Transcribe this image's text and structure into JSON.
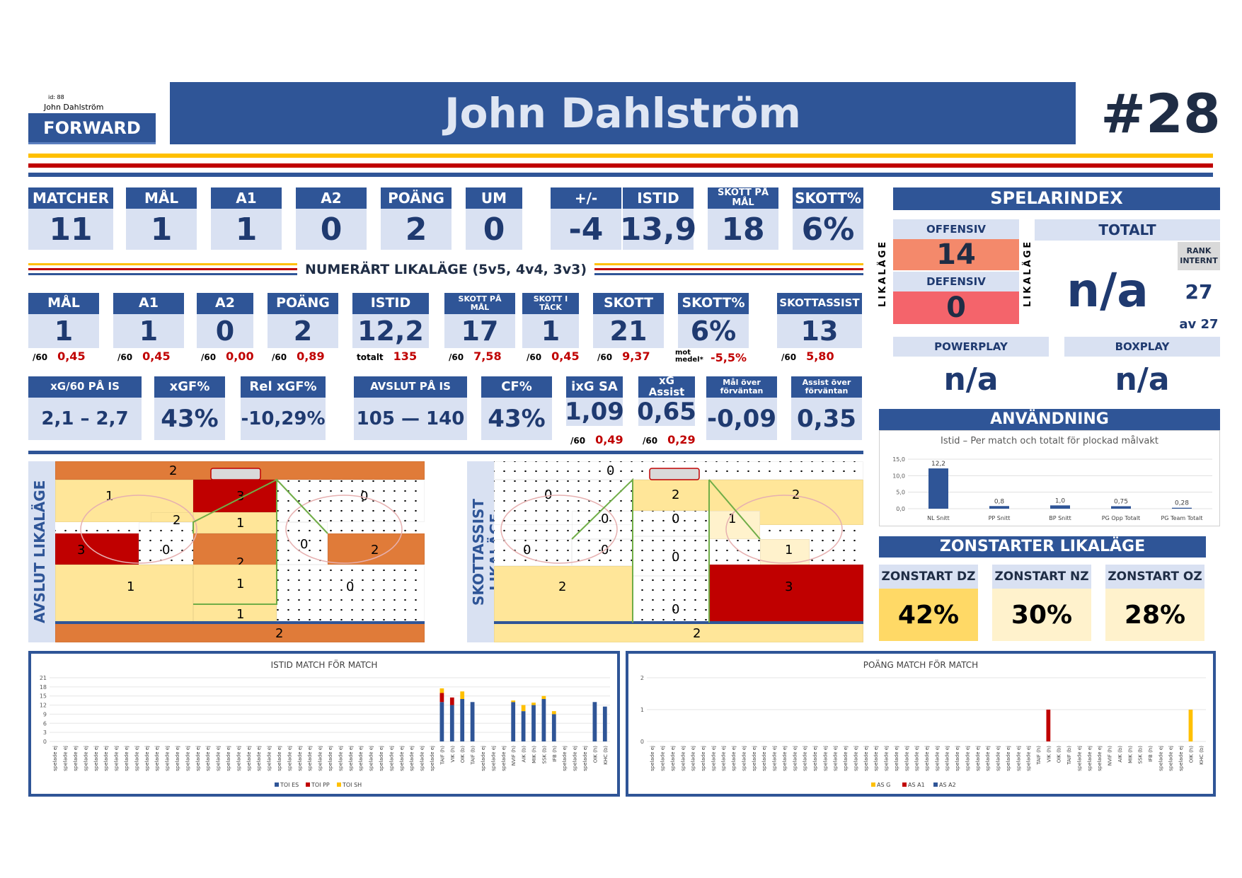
{
  "header": {
    "id_text": "id: 88",
    "player_small": "John Dahlström",
    "position": "FORWARD",
    "player_name": "John Dahlström",
    "number": "#28"
  },
  "stats_top": [
    {
      "label": "MATCHER",
      "value": "11"
    },
    {
      "label": "MÅL",
      "value": "1"
    },
    {
      "label": "A1",
      "value": "1"
    },
    {
      "label": "A2",
      "value": "0"
    },
    {
      "label": "POÄNG",
      "value": "2"
    },
    {
      "label": "UM",
      "value": "0"
    },
    {
      "label": "+/-",
      "value": "-4"
    },
    {
      "label": "ISTID",
      "value": "13,9"
    },
    {
      "label": "SKOTT PÅ MÅL",
      "value": "18"
    },
    {
      "label": "SKOTT%",
      "value": "6%"
    }
  ],
  "likalage": {
    "title": "NUMERÄRT LIKALÄGE (5v5, 4v4, 3v3)",
    "stats": [
      {
        "label": "MÅL",
        "value": "1",
        "sub_prefix": "/60",
        "sub_value": "0,45"
      },
      {
        "label": "A1",
        "value": "1",
        "sub_prefix": "/60",
        "sub_value": "0,45"
      },
      {
        "label": "A2",
        "value": "0",
        "sub_prefix": "/60",
        "sub_value": "0,00"
      },
      {
        "label": "POÄNG",
        "value": "2",
        "sub_prefix": "/60",
        "sub_value": "0,89"
      },
      {
        "label": "ISTID",
        "value": "12,2",
        "sub_prefix": "totalt",
        "sub_value": "135"
      },
      {
        "label": "SKOTT PÅ MÅL",
        "value": "17",
        "sub_prefix": "/60",
        "sub_value": "7,58"
      },
      {
        "label": "SKOTT I TÄCK",
        "value": "1",
        "sub_prefix": "/60",
        "sub_value": "0,45"
      },
      {
        "label": "SKOTT",
        "value": "21",
        "sub_prefix": "/60",
        "sub_value": "9,37"
      },
      {
        "label": "SKOTT%",
        "value": "6%",
        "sub_prefix": "mot medel*",
        "sub_value": "-5,5%"
      },
      {
        "label": "SKOTTASSIST",
        "value": "13",
        "sub_prefix": "/60",
        "sub_value": "5,80"
      }
    ],
    "xg": [
      {
        "label": "xG/60 PÅ IS",
        "value": "2,1 – 2,7"
      },
      {
        "label": "xGF%",
        "value": "43%"
      },
      {
        "label": "Rel xGF%",
        "value": "-10,29%"
      },
      {
        "label": "AVSLUT PÅ IS",
        "value": "105 — 140"
      },
      {
        "label": "CF%",
        "value": "43%"
      },
      {
        "label": "ixG SA",
        "value": "1,09",
        "sub_prefix": "/60",
        "sub_value": "0,49"
      },
      {
        "label": "xG Assist",
        "value": "0,65",
        "sub_prefix": "/60",
        "sub_value": "0,29"
      },
      {
        "label": "Mål över förväntan",
        "value": "-0,09"
      },
      {
        "label": "Assist över förväntan",
        "value": "0,35"
      }
    ]
  },
  "spelarindex": {
    "title": "SPELARINDEX",
    "offensiv_label": "OFFENSIV",
    "offensiv_value": "14",
    "defensiv_label": "DEFENSIV",
    "defensiv_value": "0",
    "side_label": "LIKALÄGE",
    "totalt_label": "TOTALT",
    "totalt_value": "n/a",
    "rank_label": "RANK INTERNT",
    "rank_value": "27",
    "rank_of": "av 27",
    "powerplay_label": "POWERPLAY",
    "powerplay_value": "n/a",
    "boxplay_label": "BOXPLAY",
    "boxplay_value": "n/a"
  },
  "anvandning": {
    "title": "ANVÄNDNING",
    "chart_data": {
      "type": "bar",
      "title": "Istid – Per match och totalt för plockad målvakt",
      "categories": [
        "NL Snitt",
        "PP Snitt",
        "BP Snitt",
        "PG Opp Totalt",
        "PG Team Totalt"
      ],
      "values": [
        12.2,
        0.8,
        1.0,
        0.75,
        0.28
      ],
      "value_labels": [
        "12,2",
        "0,8",
        "1,0",
        "0,75",
        "0,28"
      ],
      "y_ticks": [
        "15,0",
        "10,0",
        "5,0",
        "0,0"
      ],
      "ylim": [
        0,
        15
      ],
      "color": "#2f5597"
    }
  },
  "zonstarter": {
    "title": "ZONSTARTER LIKALÄGE",
    "items": [
      {
        "label": "ZONSTART DZ",
        "value": "42%",
        "color": "#ffd966"
      },
      {
        "label": "ZONSTART NZ",
        "value": "30%",
        "color": "#fff2cc"
      },
      {
        "label": "ZONSTART OZ",
        "value": "28%",
        "color": "#fff2cc"
      }
    ]
  },
  "avslut": {
    "title": "AVSLUT LIKALÄGE",
    "zones": [
      {
        "v": "2",
        "c": "#e07b39"
      },
      {
        "v": "1",
        "c": "#ffe699"
      },
      {
        "v": "3",
        "c": "#c00000"
      },
      {
        "v": "0",
        "c": "#ffffff"
      },
      {
        "v": "2",
        "c": "#ffe699"
      },
      {
        "v": "1",
        "c": "#ffe699"
      },
      {
        "v": "0",
        "c": "#ffffff"
      },
      {
        "v": "3",
        "c": "#c00000"
      },
      {
        "v": "0",
        "c": "#ffffff"
      },
      {
        "v": "2",
        "c": "#e07b39"
      },
      {
        "v": "2",
        "c": "#e07b39"
      },
      {
        "v": "1",
        "c": "#ffe699"
      },
      {
        "v": "1",
        "c": "#ffe699"
      },
      {
        "v": "1",
        "c": "#ffe699"
      },
      {
        "v": "0",
        "c": "#ffffff"
      },
      {
        "v": "2",
        "c": "#e07b39"
      }
    ]
  },
  "skottassist": {
    "title": "SKOTTASSIST LIKALÄGE",
    "zones": [
      {
        "v": "0",
        "c": "#ffffff"
      },
      {
        "v": "0",
        "c": "#ffffff"
      },
      {
        "v": "2",
        "c": "#ffe699"
      },
      {
        "v": "2",
        "c": "#ffe699"
      },
      {
        "v": "0",
        "c": "#ffffff"
      },
      {
        "v": "0",
        "c": "#ffffff"
      },
      {
        "v": "1",
        "c": "#fff2cc"
      },
      {
        "v": "0",
        "c": "#ffffff"
      },
      {
        "v": "0",
        "c": "#ffffff"
      },
      {
        "v": "0",
        "c": "#ffffff"
      },
      {
        "v": "1",
        "c": "#fff2cc"
      },
      {
        "v": "2",
        "c": "#ffe699"
      },
      {
        "v": "3",
        "c": "#c00000"
      },
      {
        "v": "0",
        "c": "#ffffff"
      },
      {
        "v": "2",
        "c": "#ffe699"
      }
    ]
  },
  "istid_chart": {
    "chart_data": {
      "type": "bar",
      "title": "ISTID MATCH FÖR MATCH",
      "y_ticks": [
        "21",
        "18",
        "15",
        "12",
        "9",
        "6",
        "3",
        "0"
      ],
      "ylim": [
        0,
        21
      ],
      "categories": [
        "spelade ej",
        "spelade ej",
        "spelade ej",
        "spelade ej",
        "spelade ej",
        "spelade ej",
        "spelade ej",
        "spelade ej",
        "spelade ej",
        "spelade ej",
        "spelade ej",
        "spelade ej",
        "spelade ej",
        "spelade ej",
        "spelade ej",
        "spelade ej",
        "spelade ej",
        "spelade ej",
        "spelade ej",
        "spelade ej",
        "spelade ej",
        "spelade ej",
        "spelade ej",
        "spelade ej",
        "spelade ej",
        "spelade ej",
        "spelade ej",
        "spelade ej",
        "spelade ej",
        "spelade ej",
        "spelade ej",
        "spelade ej",
        "spelade ej",
        "spelade ej",
        "spelade ej",
        "spelade ej",
        "spelade ej",
        "spelade ej",
        "TAIF (h)",
        "VIK (h)",
        "OIK (b)",
        "TAIF (b)",
        "spelade ej",
        "spelade ej",
        "spelade ej",
        "NVIF (h)",
        "AIK (b)",
        "MIK (h)",
        "SSK (b)",
        "IFB (h)",
        "spelade ej",
        "spelade ej",
        "spelade ej",
        "OIK (h)",
        "KHC (b)"
      ],
      "series": [
        {
          "name": "TOI ES",
          "color": "#2f5597",
          "values": [
            0,
            0,
            0,
            0,
            0,
            0,
            0,
            0,
            0,
            0,
            0,
            0,
            0,
            0,
            0,
            0,
            0,
            0,
            0,
            0,
            0,
            0,
            0,
            0,
            0,
            0,
            0,
            0,
            0,
            0,
            0,
            0,
            0,
            0,
            0,
            0,
            0,
            0,
            13,
            12,
            14,
            13,
            0,
            0,
            0,
            13,
            10,
            12,
            14,
            9,
            0,
            0,
            0,
            13,
            11.5
          ]
        },
        {
          "name": "TOI PP",
          "color": "#c00000",
          "values": [
            0,
            0,
            0,
            0,
            0,
            0,
            0,
            0,
            0,
            0,
            0,
            0,
            0,
            0,
            0,
            0,
            0,
            0,
            0,
            0,
            0,
            0,
            0,
            0,
            0,
            0,
            0,
            0,
            0,
            0,
            0,
            0,
            0,
            0,
            0,
            0,
            0,
            0,
            3,
            2.5,
            0,
            0,
            0,
            0,
            0,
            0,
            0,
            0,
            0,
            0,
            0,
            0,
            0,
            0,
            0
          ]
        },
        {
          "name": "TOI SH",
          "color": "#ffc000",
          "values": [
            0,
            0,
            0,
            0,
            0,
            0,
            0,
            0,
            0,
            0,
            0,
            0,
            0,
            0,
            0,
            0,
            0,
            0,
            0,
            0,
            0,
            0,
            0,
            0,
            0,
            0,
            0,
            0,
            0,
            0,
            0,
            0,
            0,
            0,
            0,
            0,
            0,
            0,
            1.5,
            0,
            2.5,
            0,
            0,
            0,
            0,
            0.5,
            2,
            0.8,
            1,
            1,
            0,
            0,
            0,
            0,
            0
          ]
        }
      ]
    }
  },
  "poang_chart": {
    "chart_data": {
      "type": "bar",
      "title": "POÄNG MATCH FÖR MATCH",
      "y_ticks": [
        "2",
        "1",
        "0"
      ],
      "ylim": [
        0,
        2
      ],
      "categories": [
        "spelade ej",
        "spelade ej",
        "spelade ej",
        "spelade ej",
        "spelade ej",
        "spelade ej",
        "spelade ej",
        "spelade ej",
        "spelade ej",
        "spelade ej",
        "spelade ej",
        "spelade ej",
        "spelade ej",
        "spelade ej",
        "spelade ej",
        "spelade ej",
        "spelade ej",
        "spelade ej",
        "spelade ej",
        "spelade ej",
        "spelade ej",
        "spelade ej",
        "spelade ej",
        "spelade ej",
        "spelade ej",
        "spelade ej",
        "spelade ej",
        "spelade ej",
        "spelade ej",
        "spelade ej",
        "spelade ej",
        "spelade ej",
        "spelade ej",
        "spelade ej",
        "spelade ej",
        "spelade ej",
        "spelade ej",
        "spelade ej",
        "TAIF (h)",
        "VIK (h)",
        "OIK (b)",
        "TAIF (b)",
        "spelade ej",
        "spelade ej",
        "spelade ej",
        "NVIF (h)",
        "AIK (b)",
        "MIK (h)",
        "SSK (b)",
        "IFB (h)",
        "spelade ej",
        "spelade ej",
        "spelade ej",
        "OIK (h)",
        "KHC (b)"
      ],
      "series": [
        {
          "name": "AS G",
          "color": "#ffc000",
          "values": [
            0,
            0,
            0,
            0,
            0,
            0,
            0,
            0,
            0,
            0,
            0,
            0,
            0,
            0,
            0,
            0,
            0,
            0,
            0,
            0,
            0,
            0,
            0,
            0,
            0,
            0,
            0,
            0,
            0,
            0,
            0,
            0,
            0,
            0,
            0,
            0,
            0,
            0,
            0,
            0,
            0,
            0,
            0,
            0,
            0,
            0,
            0,
            0,
            0,
            0,
            0,
            0,
            0,
            1,
            0
          ]
        },
        {
          "name": "AS A1",
          "color": "#c00000",
          "values": [
            0,
            0,
            0,
            0,
            0,
            0,
            0,
            0,
            0,
            0,
            0,
            0,
            0,
            0,
            0,
            0,
            0,
            0,
            0,
            0,
            0,
            0,
            0,
            0,
            0,
            0,
            0,
            0,
            0,
            0,
            0,
            0,
            0,
            0,
            0,
            0,
            0,
            0,
            0,
            1,
            0,
            0,
            0,
            0,
            0,
            0,
            0,
            0,
            0,
            0,
            0,
            0,
            0,
            0,
            0
          ]
        },
        {
          "name": "AS A2",
          "color": "#2f5597",
          "values": [
            0,
            0,
            0,
            0,
            0,
            0,
            0,
            0,
            0,
            0,
            0,
            0,
            0,
            0,
            0,
            0,
            0,
            0,
            0,
            0,
            0,
            0,
            0,
            0,
            0,
            0,
            0,
            0,
            0,
            0,
            0,
            0,
            0,
            0,
            0,
            0,
            0,
            0,
            0,
            0,
            0,
            0,
            0,
            0,
            0,
            0,
            0,
            0,
            0,
            0,
            0,
            0,
            0,
            0,
            0
          ]
        }
      ]
    }
  }
}
